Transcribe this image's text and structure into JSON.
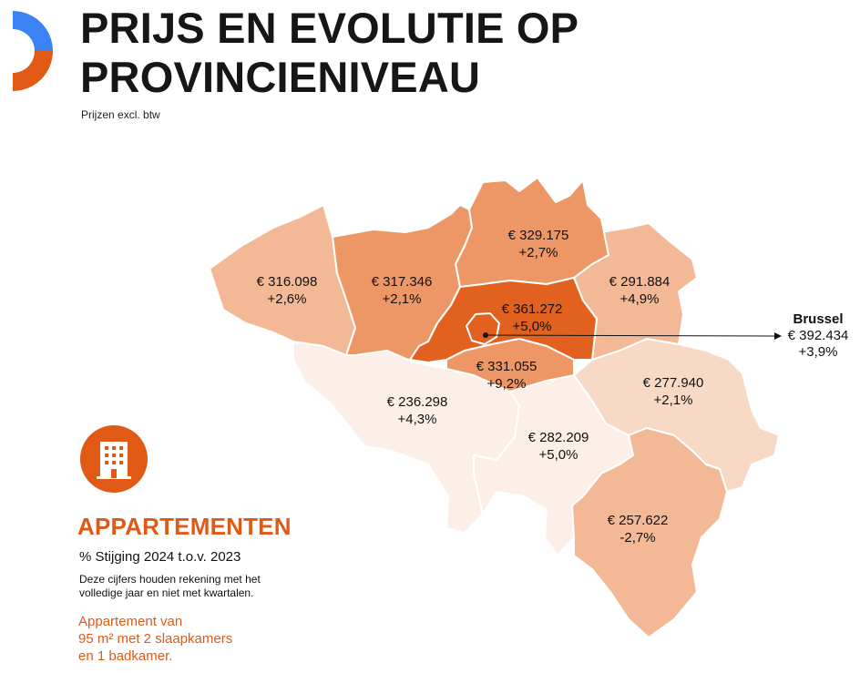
{
  "header": {
    "title_line1": "PRIJS EN EVOLUTIE OP",
    "title_line2": "PROVINCIENIVEAU",
    "subtitle": "Prijzen excl. btw"
  },
  "colors": {
    "accent_orange": "#e05a16",
    "accent_blue": "#3b82f6",
    "shade_darkest": "#e3611f",
    "shade_dark": "#ee9766",
    "shade_mid": "#f3b996",
    "shade_light": "#f7d9c6",
    "shade_lightest": "#fcefe8"
  },
  "provinces": [
    {
      "id": "west-vlaanderen",
      "price": "€ 316.098",
      "change": "+2,6%"
    },
    {
      "id": "oost-vlaanderen",
      "price": "€ 317.346",
      "change": "+2,1%"
    },
    {
      "id": "antwerpen",
      "price": "€ 329.175",
      "change": "+2,7%"
    },
    {
      "id": "limburg",
      "price": "€ 291.884",
      "change": "+4,9%"
    },
    {
      "id": "vlaams-brabant",
      "price": "€ 361.272",
      "change": "+5,0%"
    },
    {
      "id": "waals-brabant",
      "price": "€ 331.055",
      "change": "+9,2%"
    },
    {
      "id": "henegouwen",
      "price": "€ 236.298",
      "change": "+4,3%"
    },
    {
      "id": "namen",
      "price": "€ 282.209",
      "change": "+5,0%"
    },
    {
      "id": "luik",
      "price": "€ 277.940",
      "change": "+2,1%"
    },
    {
      "id": "luxemburg",
      "price": "€ 257.622",
      "change": "-2,7%"
    }
  ],
  "brussel": {
    "name": "Brussel",
    "price": "€ 392.434",
    "change": "+3,9%"
  },
  "legend": {
    "icon": "apartment-building-icon",
    "category": "APPARTEMENTEN",
    "percentage_label": "% Stijging 2024 t.o.v. 2023",
    "note_line1": "Deze cijfers houden rekening met het",
    "note_line2": "volledige jaar en niet met kwartalen.",
    "desc_line1": "Appartement van",
    "desc_line2": "95 m² met 2 slaapkamers",
    "desc_line3": "en 1 badkamer."
  }
}
